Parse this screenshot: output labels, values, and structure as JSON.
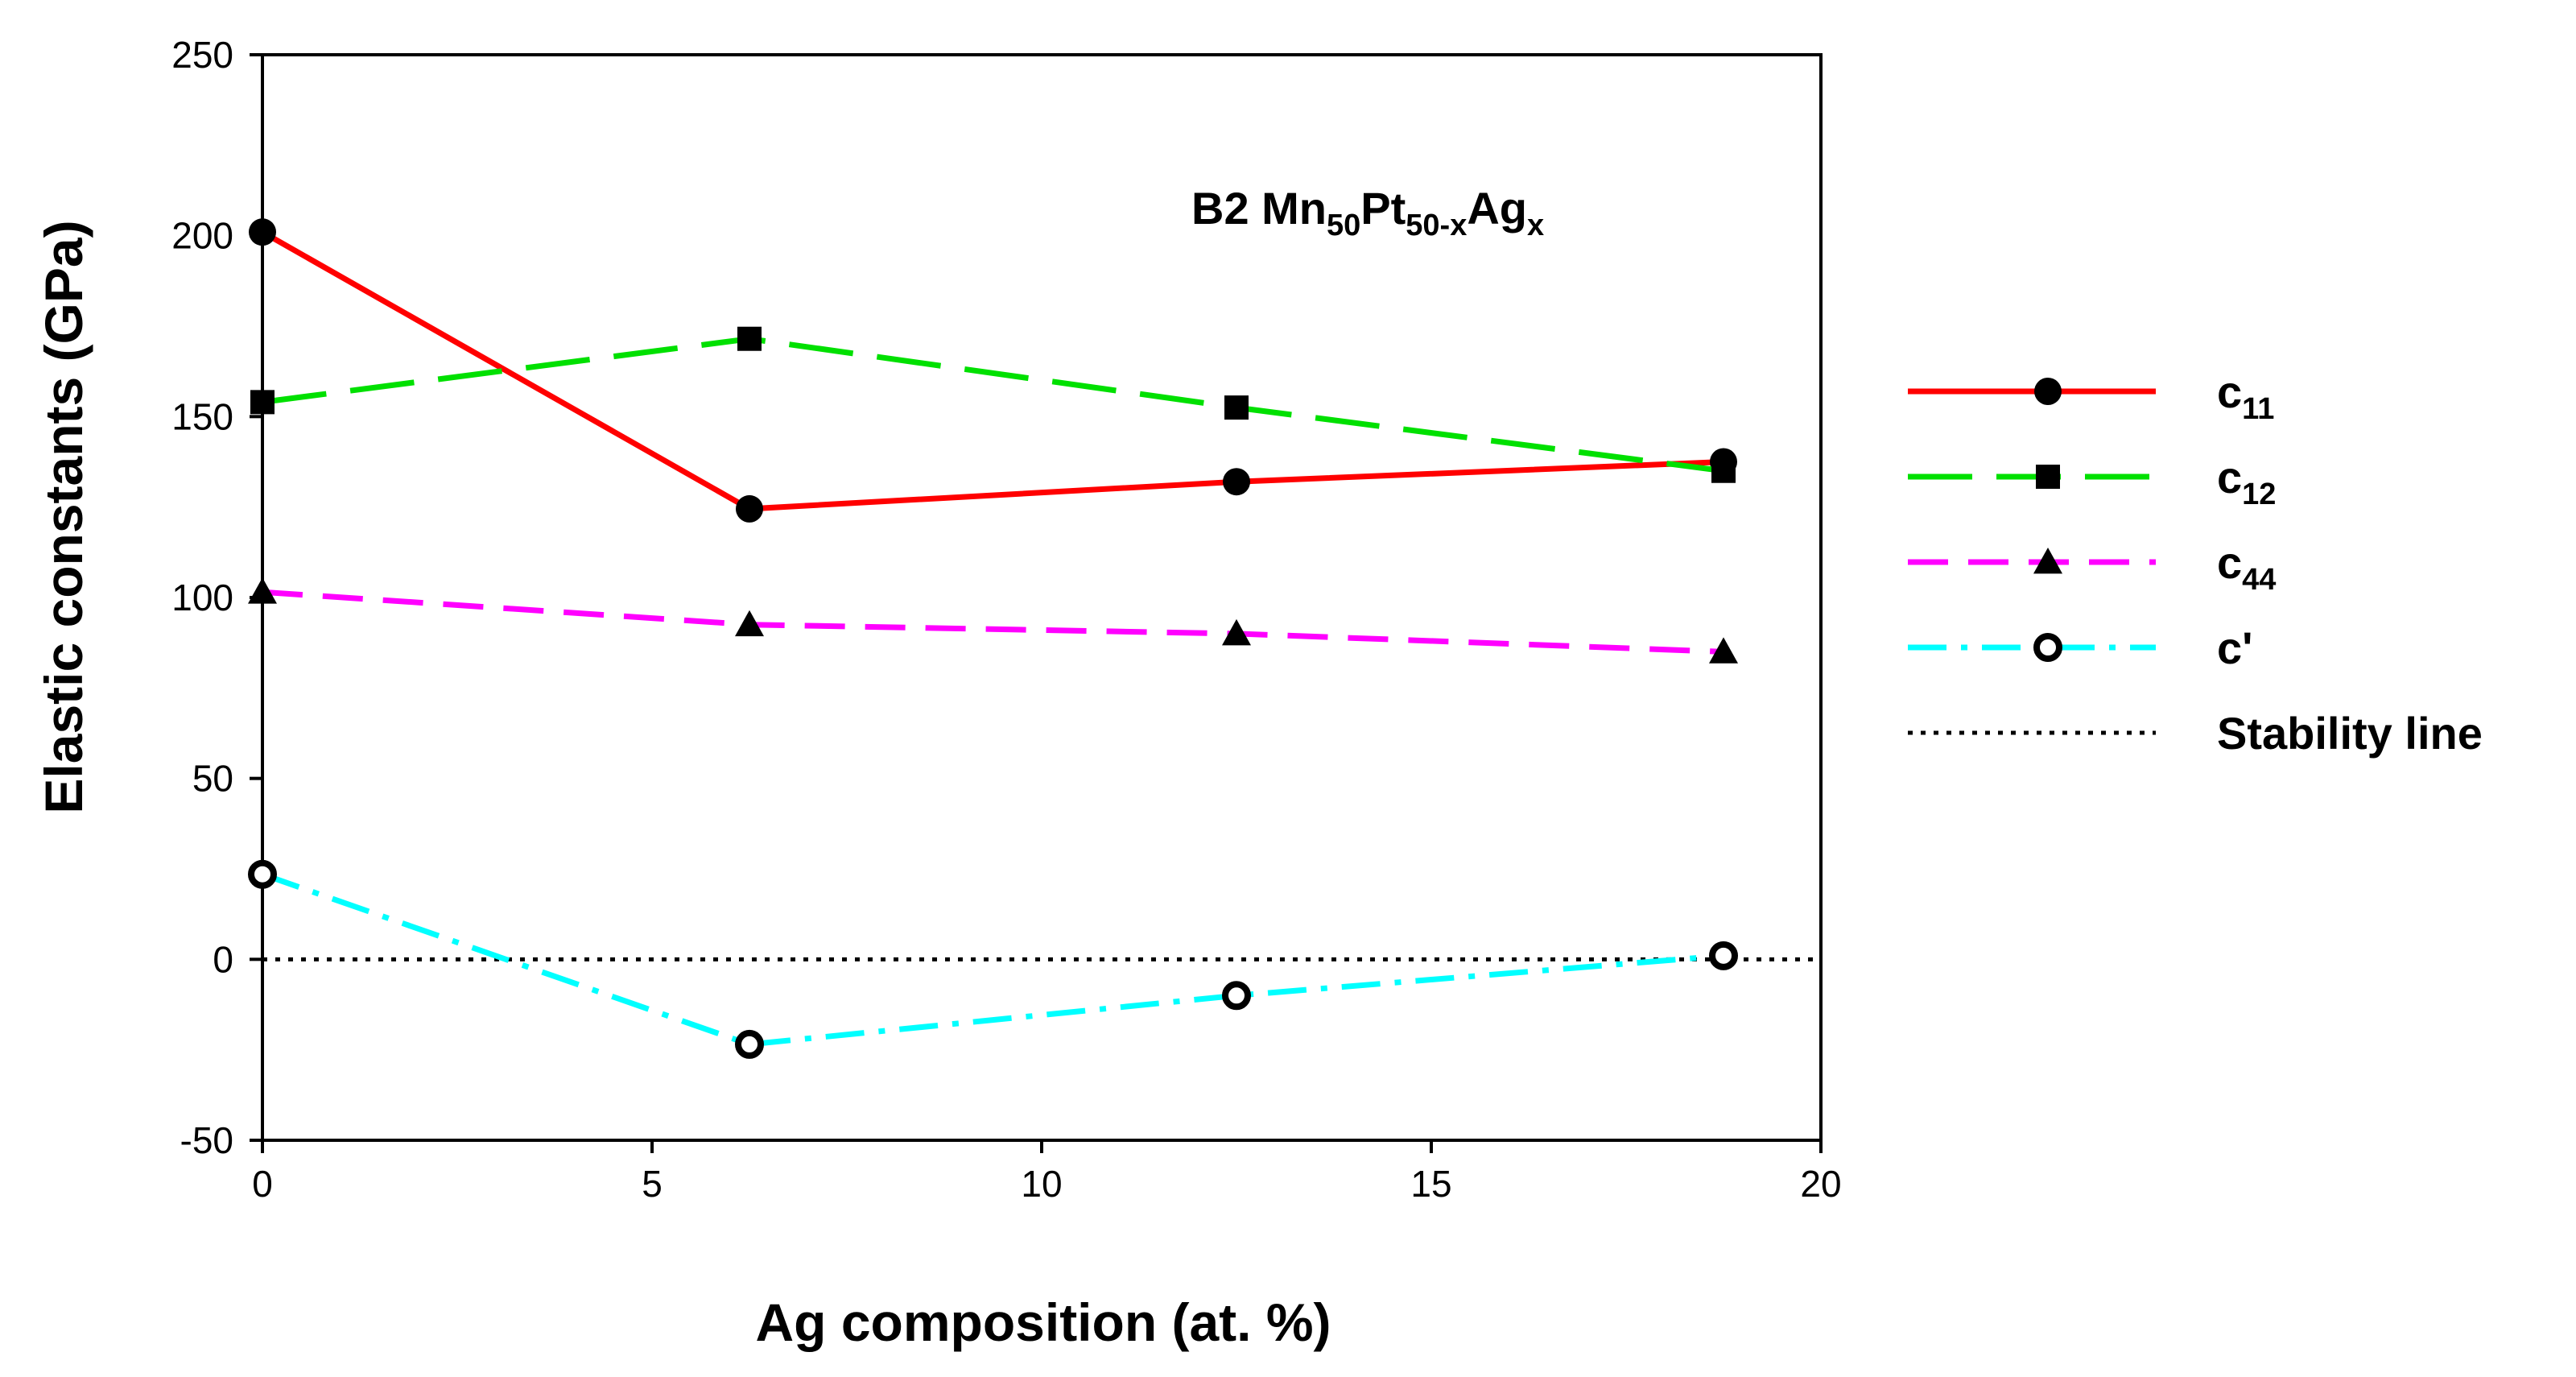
{
  "chart_data": {
    "type": "line",
    "title": {
      "parts": [
        {
          "text": "B2 Mn",
          "sub": false
        },
        {
          "text": "50",
          "sub": true
        },
        {
          "text": "Pt",
          "sub": false
        },
        {
          "text": "50-x",
          "sub": true
        },
        {
          "text": "Ag",
          "sub": false
        },
        {
          "text": "x",
          "sub": true
        }
      ]
    },
    "xlabel": "Ag composition (at. %)",
    "ylabel": "Elastic constants (GPa)",
    "xlim": [
      0,
      20
    ],
    "ylim": [
      -50,
      250
    ],
    "x_ticks": [
      0,
      5,
      10,
      15,
      20
    ],
    "y_ticks": [
      -50,
      0,
      50,
      100,
      150,
      200,
      250
    ],
    "legend_position": "right",
    "series": [
      {
        "name": "c11",
        "label_base": "c",
        "label_sub": "11",
        "x": [
          0,
          6.25,
          12.5,
          18.75
        ],
        "y": [
          201,
          124.5,
          132,
          137.5
        ],
        "color": "#ff0000",
        "dash": "solid",
        "marker": "circle-filled"
      },
      {
        "name": "c12",
        "label_base": "c",
        "label_sub": "12",
        "x": [
          0,
          6.25,
          12.5,
          18.75
        ],
        "y": [
          154,
          171.5,
          152.5,
          135
        ],
        "color": "#00e000",
        "dash": "long-dash",
        "marker": "square-filled"
      },
      {
        "name": "c44",
        "label_base": "c",
        "label_sub": "44",
        "x": [
          0,
          6.25,
          12.5,
          18.75
        ],
        "y": [
          101.5,
          92.5,
          90,
          85
        ],
        "color": "#ff00ff",
        "dash": "dash",
        "marker": "triangle-filled"
      },
      {
        "name": "c'",
        "label_base": "c'",
        "label_sub": "",
        "x": [
          0,
          6.25,
          12.5,
          18.75
        ],
        "y": [
          23.5,
          -23.5,
          -10,
          1
        ],
        "color": "#00ffff",
        "dash": "dash-dot",
        "marker": "circle-open-dot"
      },
      {
        "name": "Stability line",
        "label_base": "Stability line",
        "label_sub": "",
        "x": [
          0,
          20
        ],
        "y": [
          0,
          0
        ],
        "color": "#000000",
        "dash": "dotted",
        "marker": "none"
      }
    ]
  }
}
